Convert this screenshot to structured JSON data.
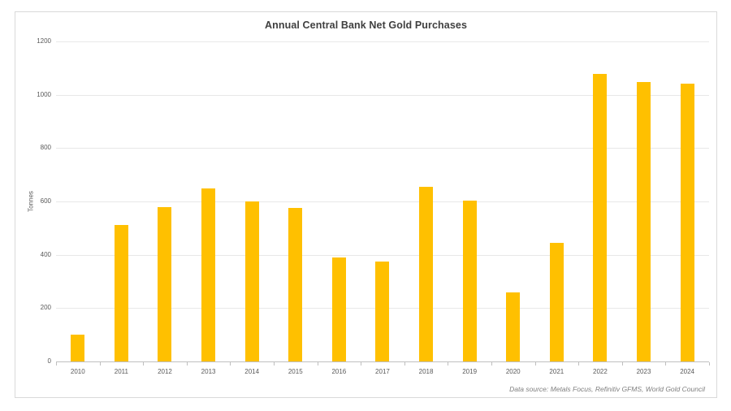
{
  "chart_data": {
    "type": "bar",
    "title": "Annual Central Bank Net Gold Purchases",
    "ylabel": "Tonnes",
    "xlabel": "",
    "categories": [
      "2010",
      "2011",
      "2012",
      "2013",
      "2014",
      "2015",
      "2016",
      "2017",
      "2018",
      "2019",
      "2020",
      "2021",
      "2022",
      "2023",
      "2024"
    ],
    "values": [
      105,
      515,
      583,
      651,
      602,
      580,
      394,
      377,
      657,
      606,
      261,
      449,
      1081,
      1051,
      1044
    ],
    "ylim": [
      0,
      1200
    ],
    "yticks": [
      0,
      200,
      400,
      600,
      800,
      1000,
      1200
    ],
    "grid": true,
    "legend": "none",
    "bar_color": "#ffc000",
    "source_note": "Data source: Metals Focus, Refinitiv GFMS, World Gold Council"
  },
  "colors": {
    "bar": "#ffc000",
    "gridline": "#e8e8e8",
    "axis_line": "#bfbfbf",
    "tick_text": "#595959",
    "title_text": "#3f3f3f",
    "source_text": "#7f7f7f",
    "card_border": "#d9d9d9",
    "background": "#ffffff"
  }
}
